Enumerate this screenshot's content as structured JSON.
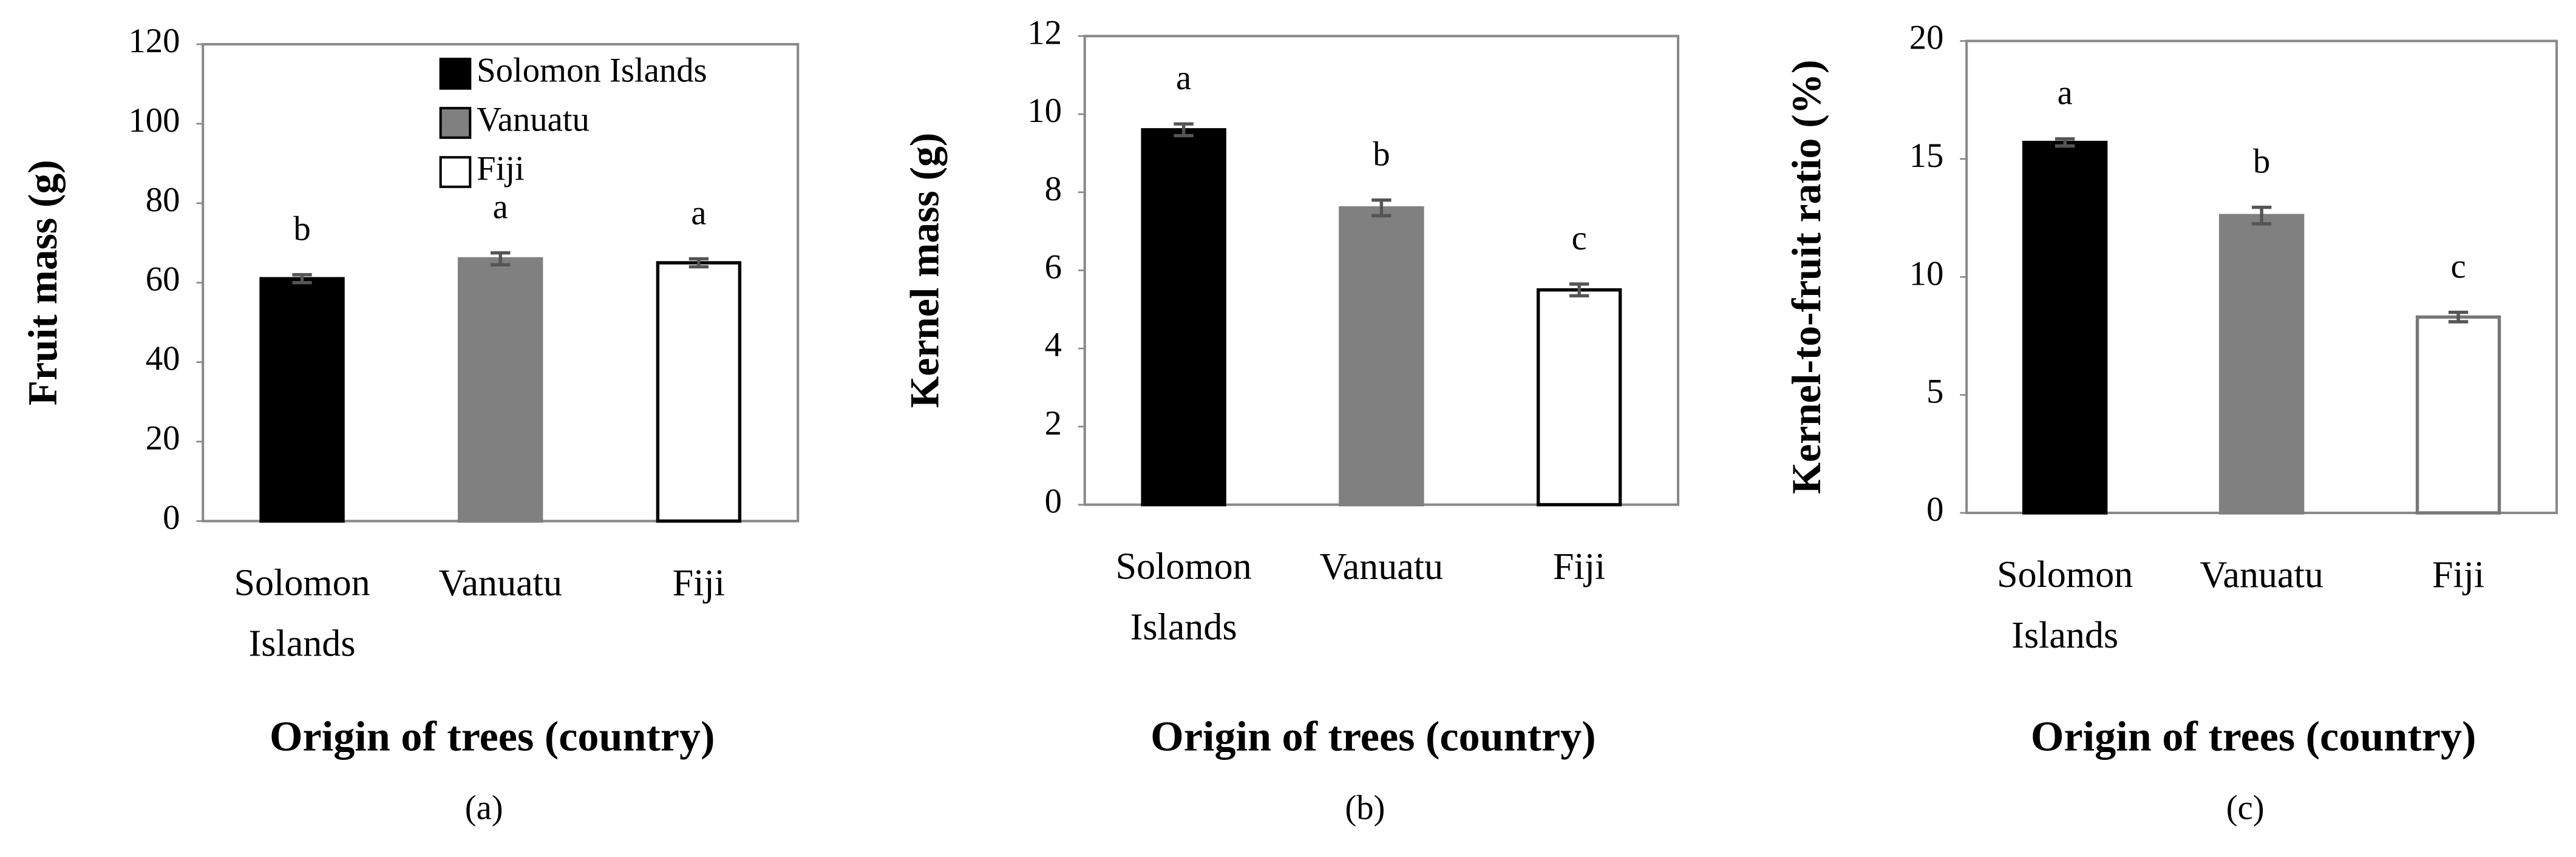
{
  "chart_data": [
    {
      "type": "bar",
      "ylabel": "Fruit mass (g)",
      "xlabel": "Origin of trees (country)",
      "panel_label": "(a)",
      "categories": [
        "Solomon Islands",
        "Vanuatu",
        "Fiji"
      ],
      "values": [
        61,
        66,
        65
      ],
      "errors": [
        1,
        1.5,
        1
      ],
      "annotations": [
        "b",
        "a",
        "a"
      ],
      "colors": [
        "#000000",
        "#808080",
        "#ffffff"
      ],
      "ylim": [
        0,
        120
      ],
      "yticks": [
        0,
        20,
        40,
        60,
        80,
        100,
        120
      ],
      "legend": "upper right"
    },
    {
      "type": "bar",
      "ylabel": "Kernel mass (g)",
      "xlabel": "Origin of trees (country)",
      "panel_label": "(b)",
      "categories": [
        "Solomon Islands",
        "Vanuatu",
        "Fiji"
      ],
      "values": [
        9.6,
        7.6,
        5.5
      ],
      "errors": [
        0.15,
        0.2,
        0.15
      ],
      "annotations": [
        "a",
        "b",
        "c"
      ],
      "colors": [
        "#000000",
        "#808080",
        "#ffffff"
      ],
      "ylim": [
        0,
        12
      ],
      "yticks": [
        0,
        2,
        4,
        6,
        8,
        10,
        12
      ]
    },
    {
      "type": "bar",
      "ylabel": "Kernel-to-fruit ratio (%)",
      "xlabel": "Origin of trees (country)",
      "panel_label": "(c)",
      "categories": [
        "Solomon Islands",
        "Vanuatu",
        "Fiji"
      ],
      "values": [
        15.7,
        12.6,
        8.3
      ],
      "errors": [
        0.15,
        0.35,
        0.2
      ],
      "annotations": [
        "a",
        "b",
        "c"
      ],
      "colors": [
        "#000000",
        "#808080",
        "#ffffff"
      ],
      "ylim": [
        0,
        20
      ],
      "yticks": [
        0,
        5,
        10,
        15,
        20
      ]
    }
  ]
}
